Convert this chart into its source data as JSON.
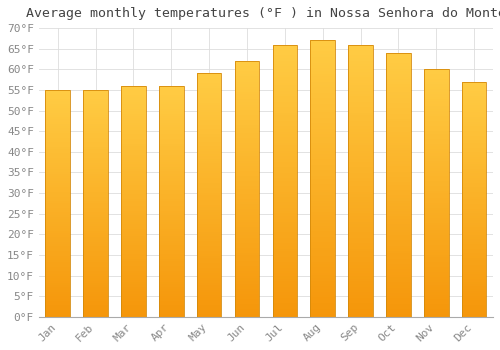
{
  "title": "Average monthly temperatures (°F ) in Nossa Senhora do Monte",
  "months": [
    "Jan",
    "Feb",
    "Mar",
    "Apr",
    "May",
    "Jun",
    "Jul",
    "Aug",
    "Sep",
    "Oct",
    "Nov",
    "Dec"
  ],
  "values": [
    55,
    55,
    56,
    56,
    59,
    62,
    66,
    67,
    66,
    64,
    60,
    57
  ],
  "bar_color_top": "#FFCC44",
  "bar_color_bottom": "#F5960A",
  "bar_edge_color": "#D4890A",
  "ylim": [
    0,
    70
  ],
  "yticks": [
    0,
    5,
    10,
    15,
    20,
    25,
    30,
    35,
    40,
    45,
    50,
    55,
    60,
    65,
    70
  ],
  "background_color": "#ffffff",
  "grid_color": "#dddddd",
  "title_fontsize": 9.5,
  "tick_fontsize": 8,
  "font_family": "monospace",
  "tick_color": "#888888",
  "title_color": "#444444"
}
